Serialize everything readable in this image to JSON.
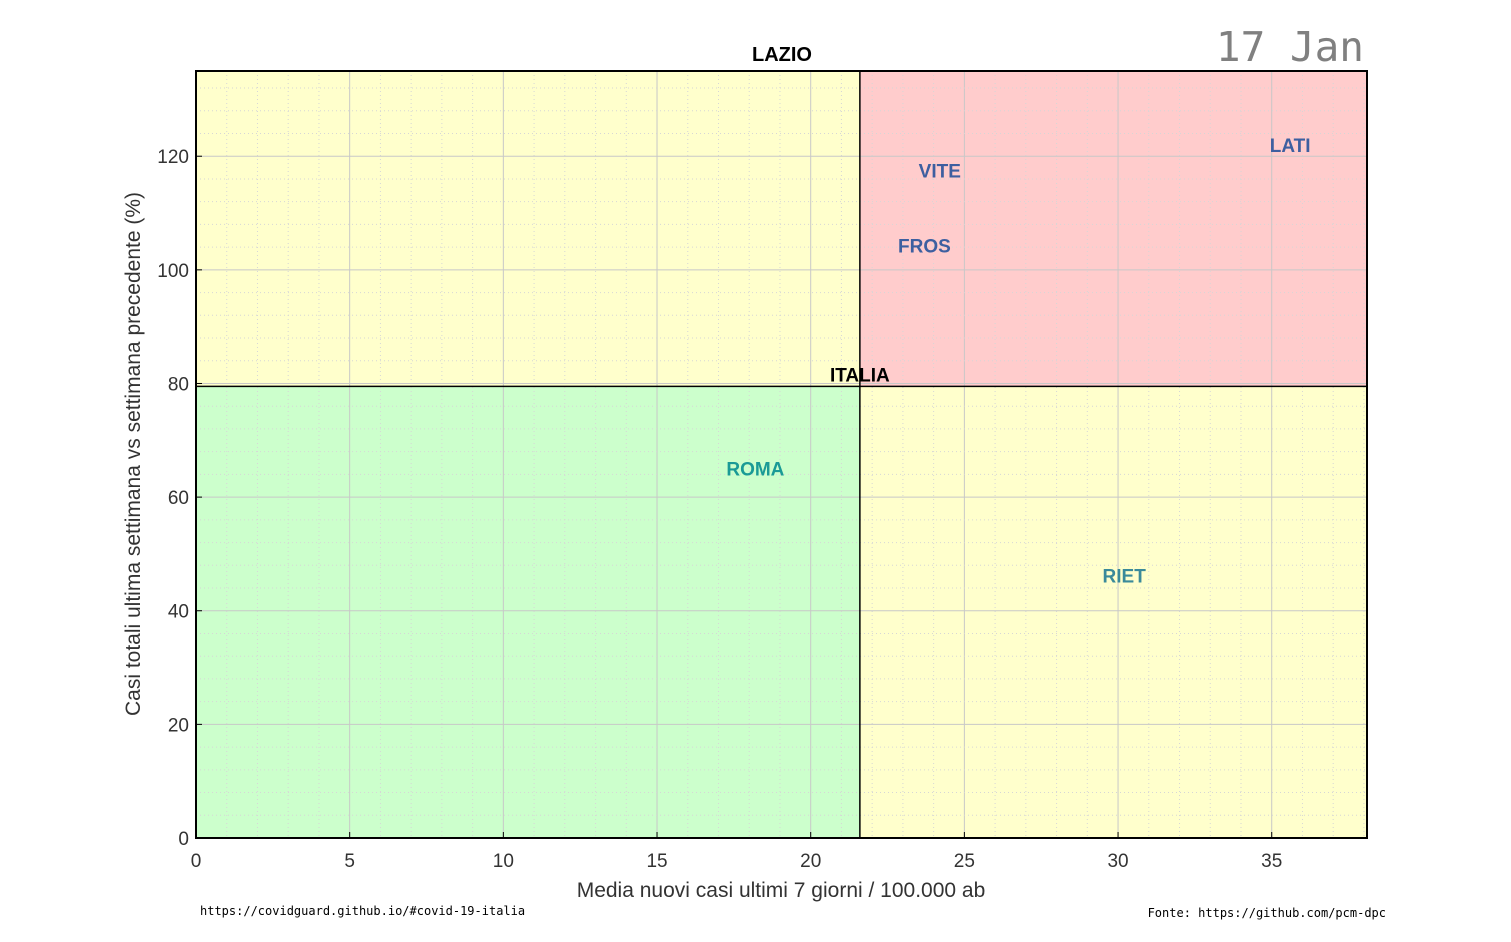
{
  "chart_data": {
    "type": "scatter",
    "title": "LAZIO",
    "date": "17 Jan",
    "xlabel": "Media nuovi casi ultimi 7 giorni / 100.000 ab",
    "ylabel": "Casi totali ultima settimana vs settimana precedente (%)",
    "xlim": [
      0,
      38.1
    ],
    "ylim": [
      0,
      135
    ],
    "xticks": [
      0,
      5,
      10,
      15,
      20,
      25,
      30,
      35
    ],
    "yticks": [
      0,
      20,
      40,
      60,
      80,
      100,
      120
    ],
    "grid": true,
    "reference": {
      "name": "ITALIA",
      "x": 21.6,
      "y": 79.5
    },
    "quadrant_colors": {
      "low_low": "#ccffcc",
      "high_high": "#ffcccc",
      "mixed": "#ffffcc"
    },
    "points": [
      {
        "label": "LATI",
        "x": 35.6,
        "y": 122,
        "color": "#3d5fa0"
      },
      {
        "label": "VITE",
        "x": 24.2,
        "y": 117.5,
        "color": "#3d5fa0"
      },
      {
        "label": "FROS",
        "x": 23.7,
        "y": 104.3,
        "color": "#3d5fa0"
      },
      {
        "label": "ROMA",
        "x": 18.2,
        "y": 65,
        "color": "#1a9a96"
      },
      {
        "label": "RIET",
        "x": 30.2,
        "y": 46.2,
        "color": "#3a8a9a"
      }
    ]
  },
  "footer": {
    "left": "https://covidguard.github.io/#covid-19-italia",
    "right": "Fonte: https://github.com/pcm-dpc"
  }
}
